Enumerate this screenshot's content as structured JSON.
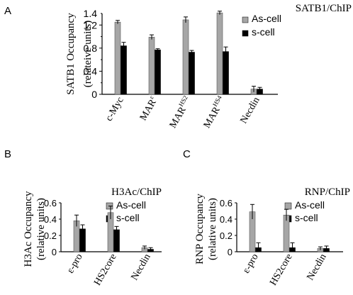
{
  "panel_letters": [
    "A",
    "B",
    "C"
  ],
  "colors": {
    "as_cell": "#a6a6a6",
    "s_cell": "#000000",
    "axis": "#000000"
  },
  "chart_data": [
    {
      "panel": "A",
      "type": "bar",
      "title": "SATB1/ChIP",
      "ylabel": [
        "SATB1 Occupancy",
        "(relateive units)"
      ],
      "ylim": [
        0,
        1.4
      ],
      "yticks": [
        "0",
        "0.4",
        "0.8",
        "1.2"
      ],
      "ytick_values": [
        0,
        0.4,
        0.8,
        1.2
      ],
      "minor_ytick_values": [
        0.2,
        0.6,
        1.0,
        1.4
      ],
      "top_tick_label": "1.4",
      "categories": [
        {
          "base": "c-Myc",
          "sup": ""
        },
        {
          "base": "MAR",
          "sup": "ε"
        },
        {
          "base": "MAR",
          "sup": "HS2"
        },
        {
          "base": "MAR",
          "sup": "HS4"
        },
        {
          "base": "Necdin",
          "sup": ""
        }
      ],
      "series": [
        {
          "name": "As-cell",
          "values": [
            1.25,
            0.99,
            1.29,
            1.41,
            0.09
          ],
          "errors": [
            0.03,
            0.04,
            0.05,
            0.03,
            0.05
          ]
        },
        {
          "name": "s-cell",
          "values": [
            0.84,
            0.77,
            0.73,
            0.74,
            0.09
          ],
          "errors": [
            0.06,
            0.02,
            0.03,
            0.08,
            0.03
          ]
        }
      ],
      "legend": "top-right",
      "grid": false
    },
    {
      "panel": "B",
      "type": "bar",
      "title": "H3Ac/ChIP",
      "ylabel": [
        "H3Ac Occupancy",
        "(relative units)"
      ],
      "ylim": [
        0,
        0.6
      ],
      "yticks": [
        "0",
        "0.2",
        "0.4",
        "0.6"
      ],
      "ytick_values": [
        0,
        0.2,
        0.4,
        0.6
      ],
      "categories": [
        {
          "base": "ε-pro",
          "sup": ""
        },
        {
          "base": "HS2core",
          "sup": ""
        },
        {
          "base": "Necdin",
          "sup": ""
        }
      ],
      "series": [
        {
          "name": "As-cell",
          "values": [
            0.38,
            0.48,
            0.05
          ],
          "errors": [
            0.07,
            0.08,
            0.02
          ]
        },
        {
          "name": "s-cell",
          "values": [
            0.28,
            0.27,
            0.03
          ],
          "errors": [
            0.05,
            0.04,
            0.02
          ]
        }
      ],
      "legend": "top-right",
      "grid": false
    },
    {
      "panel": "C",
      "type": "bar",
      "title": "RNP/ChIP",
      "ylabel": [
        "RNP Occupancy",
        "(relative units)"
      ],
      "ylim": [
        0,
        0.6
      ],
      "yticks": [
        "0",
        "0.2",
        "0.4",
        "0.6"
      ],
      "ytick_values": [
        0,
        0.2,
        0.4,
        0.6
      ],
      "categories": [
        {
          "base": "ε-pro",
          "sup": ""
        },
        {
          "base": "HS2core",
          "sup": ""
        },
        {
          "base": "Necdin",
          "sup": ""
        }
      ],
      "series": [
        {
          "name": "As-cell",
          "values": [
            0.49,
            0.45,
            0.04
          ],
          "errors": [
            0.09,
            0.07,
            0.02
          ]
        },
        {
          "name": "s-cell",
          "values": [
            0.05,
            0.05,
            0.04
          ],
          "errors": [
            0.06,
            0.06,
            0.03
          ]
        }
      ],
      "legend": "top-right",
      "grid": false
    }
  ]
}
